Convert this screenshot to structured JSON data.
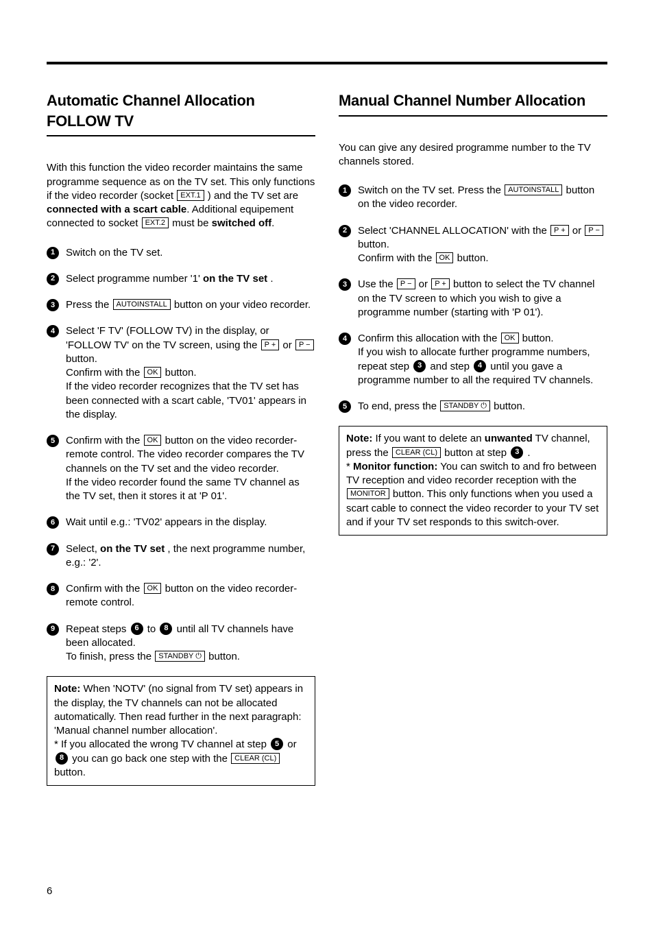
{
  "page_number": "6",
  "left": {
    "heading": "Automatic Channel Allocation FOLLOW TV",
    "intro_parts": [
      "With this function the video recorder maintains the same programme sequence as on the TV set. This only functions if the video recorder (socket ",
      " ) and the TV set are ",
      ". Additional equipement connected to socket ",
      " must be ",
      "."
    ],
    "intro_btn1": "EXT.1",
    "intro_bold1": "connected with a scart cable",
    "intro_btn2": "EXT.2",
    "intro_bold2": "switched off",
    "steps": {
      "s1": "Switch on the TV set.",
      "s2_a": "Select programme number '1' ",
      "s2_b": "on the TV set",
      "s2_c": " .",
      "s3_a": "Press the ",
      "s3_btn": "AUTOINSTALL",
      "s3_b": " button on your video recorder.",
      "s4_a": "Select 'F TV' (FOLLOW TV) in the display, or 'FOLLOW TV' on the TV screen, using the ",
      "s4_btn1": "P +",
      "s4_mid": " or ",
      "s4_btn2": "P −",
      "s4_b": " button.",
      "s4_c": "Confirm with the ",
      "s4_btn3": "OK",
      "s4_d": " button.",
      "s4_e": "If the video recorder recognizes that the TV set has been connected with a scart cable, 'TV01' appears in the display.",
      "s5_a": "Confirm with the ",
      "s5_btn": "OK",
      "s5_b": " button on the video recorder-remote control. The video recorder compares the TV channels on the TV set and the video recorder.",
      "s5_c": "If the video recorder found the same TV channel as the TV set, then it stores it at 'P 01'.",
      "s6": "Wait until e.g.: 'TV02' appears in the display.",
      "s7_a": "Select, ",
      "s7_b": "on the TV set",
      "s7_c": " , the next programme number, e.g.: '2'.",
      "s8_a": "Confirm with the ",
      "s8_btn": "OK",
      "s8_b": " button on the video recorder-remote control.",
      "s9_a": "Repeat steps ",
      "s9_mid": " to ",
      "s9_b": " until all TV channels have been allocated.",
      "s9_c": "To finish, press the ",
      "s9_btn": "STANDBY ⏻",
      "s9_d": " button."
    },
    "note": {
      "label": "Note:",
      "a": " When 'NOTV' (no signal from TV set) appears in the display, the TV channels can not be allocated automatically. Then read further in the next paragraph: 'Manual channel number allocation'.",
      "b": "* If you allocated the wrong TV channel at step ",
      "c": " or ",
      "d": " you can go back one step with the ",
      "btn": "CLEAR (CL)",
      "e": " button."
    }
  },
  "right": {
    "heading": "Manual Channel Number Allocation",
    "intro": "You can give any desired programme number to the TV channels stored.",
    "steps": {
      "s1_a": "Switch on the TV set. Press the ",
      "s1_btn": "AUTOINSTALL",
      "s1_b": " button on the video recorder.",
      "s2_a": "Select 'CHANNEL ALLOCATION' with the ",
      "s2_btn1": "P +",
      "s2_mid": " or ",
      "s2_btn2": "P −",
      "s2_b": " button.",
      "s2_c": "Confirm with the ",
      "s2_btn3": "OK",
      "s2_d": " button.",
      "s3_a": "Use the ",
      "s3_btn1": "P −",
      "s3_mid": " or ",
      "s3_btn2": "P +",
      "s3_b": " button to select the TV channel on the TV screen to which you wish to give a programme number (starting with 'P 01').",
      "s4_a": "Confirm this allocation with the ",
      "s4_btn": "OK",
      "s4_b": " button.",
      "s4_c": "If you wish to allocate further programme numbers, repeat step ",
      "s4_d": " and step ",
      "s4_e": " until you gave a programme number to all the required TV channels.",
      "s5_a": "To end, press the ",
      "s5_btn": "STANDBY ⏻",
      "s5_b": " button."
    },
    "note": {
      "label": "Note:",
      "a": " If you want to delete an ",
      "b": "unwanted",
      "c": " TV channel, press the ",
      "btn1": "CLEAR (CL)",
      "d": " button at step ",
      "e": " .",
      "f": "* ",
      "g": "Monitor function:",
      "h": " You can switch to and fro between TV reception and video recorder reception with the ",
      "btn2": "MONITOR",
      "i": " button. This only functions when you used a scart cable to connect the video recorder to your TV set and if your TV set responds to this switch-over."
    }
  }
}
